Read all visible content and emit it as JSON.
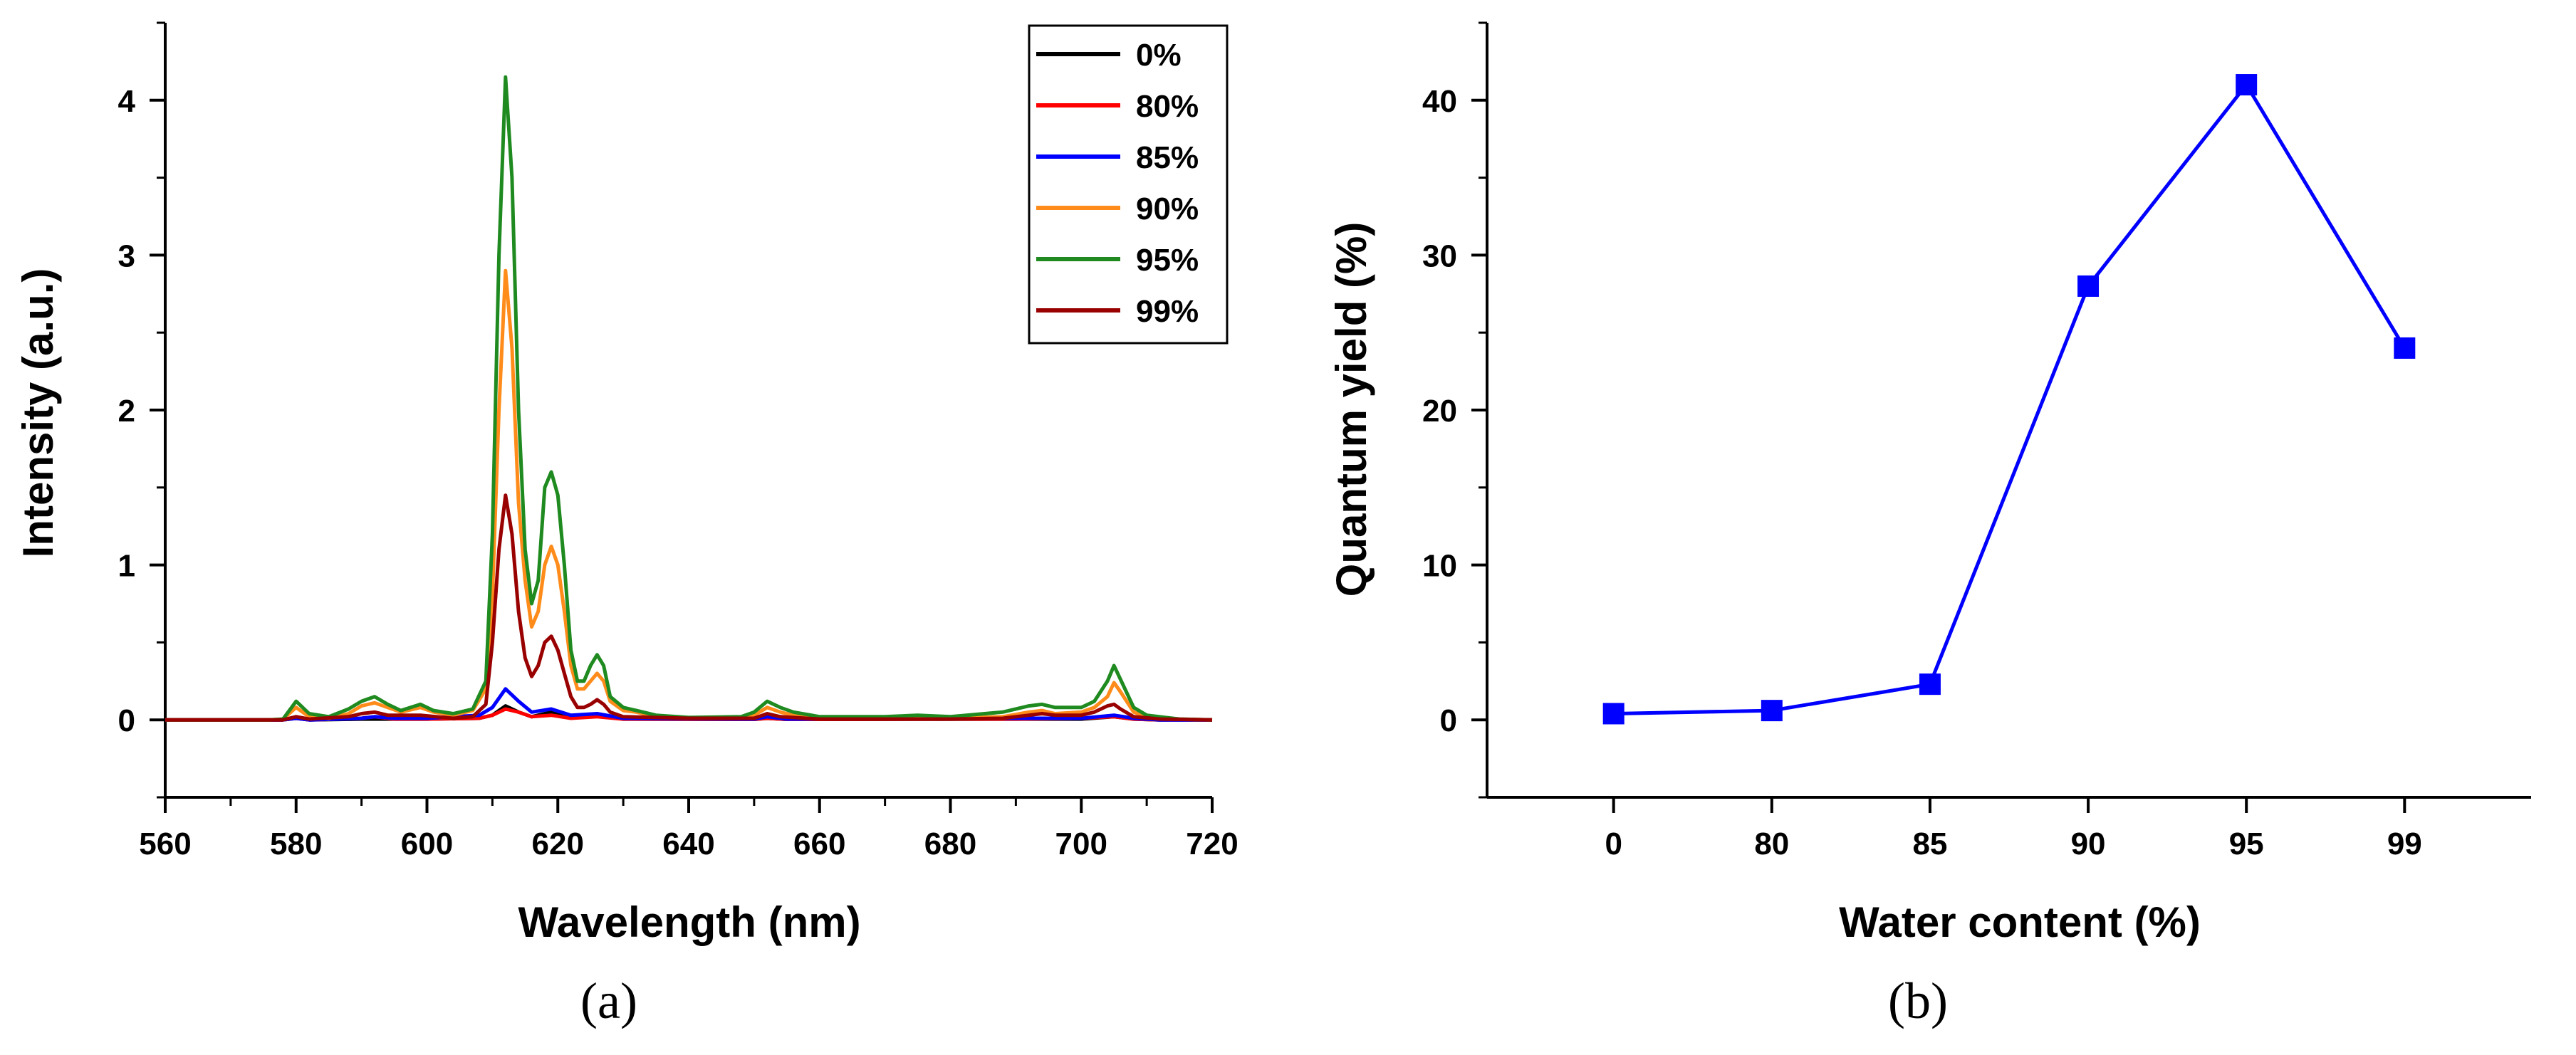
{
  "chart_data": [
    {
      "type": "line",
      "panel_label": "(a)",
      "xlabel": "Wavelength (nm)",
      "ylabel": "Intensity (a.u.)",
      "xlim": [
        560,
        720
      ],
      "ylim": [
        -0.5,
        4.5
      ],
      "xticks": [
        560,
        580,
        600,
        620,
        640,
        660,
        680,
        700,
        720
      ],
      "yticks": [
        0,
        1,
        2,
        3,
        4
      ],
      "legend_position": "top-right",
      "series": [
        {
          "name": "0%",
          "color": "#000000",
          "points": [
            [
              560,
              0
            ],
            [
              578,
              0
            ],
            [
              580,
              0.01
            ],
            [
              582,
              0
            ],
            [
              590,
              0.005
            ],
            [
              600,
              0.005
            ],
            [
              608,
              0.01
            ],
            [
              610,
              0.03
            ],
            [
              612,
              0.09
            ],
            [
              614,
              0.05
            ],
            [
              616,
              0.02
            ],
            [
              619,
              0.05
            ],
            [
              622,
              0.02
            ],
            [
              626,
              0.03
            ],
            [
              630,
              0.005
            ],
            [
              650,
              0.003
            ],
            [
              652,
              0.01
            ],
            [
              655,
              0.003
            ],
            [
              690,
              0.005
            ],
            [
              700,
              0.005
            ],
            [
              705,
              0.02
            ],
            [
              708,
              0.005
            ],
            [
              712,
              0
            ],
            [
              720,
              0
            ]
          ]
        },
        {
          "name": "80%",
          "color": "#ff0000",
          "points": [
            [
              560,
              0
            ],
            [
              578,
              0
            ],
            [
              580,
              0.01
            ],
            [
              582,
              0
            ],
            [
              590,
              0.01
            ],
            [
              592,
              0.02
            ],
            [
              595,
              0.005
            ],
            [
              600,
              0.005
            ],
            [
              608,
              0.01
            ],
            [
              610,
              0.03
            ],
            [
              612,
              0.07
            ],
            [
              614,
              0.05
            ],
            [
              616,
              0.02
            ],
            [
              619,
              0.03
            ],
            [
              622,
              0.01
            ],
            [
              626,
              0.02
            ],
            [
              630,
              0.005
            ],
            [
              650,
              0.003
            ],
            [
              652,
              0.01
            ],
            [
              655,
              0.003
            ],
            [
              690,
              0.005
            ],
            [
              700,
              0.01
            ],
            [
              705,
              0.02
            ],
            [
              708,
              0.005
            ],
            [
              712,
              0
            ],
            [
              720,
              0
            ]
          ]
        },
        {
          "name": "85%",
          "color": "#0000ff",
          "points": [
            [
              560,
              0
            ],
            [
              578,
              0
            ],
            [
              580,
              0.01
            ],
            [
              582,
              0
            ],
            [
              590,
              0.01
            ],
            [
              592,
              0.02
            ],
            [
              595,
              0.01
            ],
            [
              600,
              0.01
            ],
            [
              608,
              0.03
            ],
            [
              610,
              0.08
            ],
            [
              612,
              0.2
            ],
            [
              614,
              0.12
            ],
            [
              616,
              0.05
            ],
            [
              619,
              0.07
            ],
            [
              622,
              0.03
            ],
            [
              626,
              0.04
            ],
            [
              630,
              0.01
            ],
            [
              650,
              0.005
            ],
            [
              652,
              0.02
            ],
            [
              655,
              0.005
            ],
            [
              690,
              0.01
            ],
            [
              700,
              0.01
            ],
            [
              705,
              0.03
            ],
            [
              708,
              0.01
            ],
            [
              712,
              0
            ],
            [
              720,
              0
            ]
          ]
        },
        {
          "name": "90%",
          "color": "#ff8c1a",
          "points": [
            [
              560,
              0
            ],
            [
              576,
              0
            ],
            [
              578,
              0.005
            ],
            [
              580,
              0.08
            ],
            [
              582,
              0.02
            ],
            [
              585,
              0.01
            ],
            [
              588,
              0.04
            ],
            [
              590,
              0.09
            ],
            [
              592,
              0.11
            ],
            [
              594,
              0.08
            ],
            [
              596,
              0.05
            ],
            [
              599,
              0.08
            ],
            [
              601,
              0.05
            ],
            [
              604,
              0.03
            ],
            [
              607,
              0.06
            ],
            [
              609,
              0.2
            ],
            [
              610,
              0.8
            ],
            [
              611,
              2.0
            ],
            [
              612,
              2.9
            ],
            [
              613,
              2.4
            ],
            [
              614,
              1.4
            ],
            [
              615,
              0.9
            ],
            [
              616,
              0.6
            ],
            [
              617,
              0.7
            ],
            [
              618,
              1.0
            ],
            [
              619,
              1.12
            ],
            [
              620,
              1.0
            ],
            [
              621,
              0.7
            ],
            [
              622,
              0.35
            ],
            [
              623,
              0.2
            ],
            [
              624,
              0.2
            ],
            [
              625,
              0.25
            ],
            [
              626,
              0.3
            ],
            [
              627,
              0.25
            ],
            [
              628,
              0.12
            ],
            [
              630,
              0.06
            ],
            [
              632,
              0.05
            ],
            [
              635,
              0.02
            ],
            [
              640,
              0.01
            ],
            [
              648,
              0.01
            ],
            [
              650,
              0.03
            ],
            [
              652,
              0.08
            ],
            [
              654,
              0.05
            ],
            [
              656,
              0.03
            ],
            [
              660,
              0.01
            ],
            [
              670,
              0.01
            ],
            [
              675,
              0.02
            ],
            [
              680,
              0.01
            ],
            [
              688,
              0.02
            ],
            [
              692,
              0.05
            ],
            [
              694,
              0.06
            ],
            [
              696,
              0.04
            ],
            [
              700,
              0.05
            ],
            [
              702,
              0.08
            ],
            [
              704,
              0.15
            ],
            [
              705,
              0.24
            ],
            [
              706,
              0.18
            ],
            [
              708,
              0.05
            ],
            [
              710,
              0.02
            ],
            [
              715,
              0.005
            ],
            [
              720,
              0
            ]
          ]
        },
        {
          "name": "95%",
          "color": "#1f8a1f",
          "points": [
            [
              560,
              0
            ],
            [
              576,
              0
            ],
            [
              578,
              0.005
            ],
            [
              580,
              0.12
            ],
            [
              582,
              0.04
            ],
            [
              585,
              0.02
            ],
            [
              588,
              0.07
            ],
            [
              590,
              0.12
            ],
            [
              592,
              0.15
            ],
            [
              594,
              0.1
            ],
            [
              596,
              0.06
            ],
            [
              599,
              0.1
            ],
            [
              601,
              0.06
            ],
            [
              604,
              0.04
            ],
            [
              607,
              0.07
            ],
            [
              609,
              0.25
            ],
            [
              610,
              1.2
            ],
            [
              611,
              3.0
            ],
            [
              612,
              4.15
            ],
            [
              613,
              3.5
            ],
            [
              614,
              2.0
            ],
            [
              615,
              1.1
            ],
            [
              616,
              0.75
            ],
            [
              617,
              0.9
            ],
            [
              618,
              1.5
            ],
            [
              619,
              1.6
            ],
            [
              620,
              1.45
            ],
            [
              621,
              1.0
            ],
            [
              622,
              0.45
            ],
            [
              623,
              0.25
            ],
            [
              624,
              0.25
            ],
            [
              625,
              0.35
            ],
            [
              626,
              0.42
            ],
            [
              627,
              0.35
            ],
            [
              628,
              0.15
            ],
            [
              630,
              0.08
            ],
            [
              632,
              0.06
            ],
            [
              635,
              0.03
            ],
            [
              640,
              0.015
            ],
            [
              648,
              0.02
            ],
            [
              650,
              0.05
            ],
            [
              652,
              0.12
            ],
            [
              654,
              0.08
            ],
            [
              656,
              0.05
            ],
            [
              660,
              0.02
            ],
            [
              670,
              0.02
            ],
            [
              675,
              0.03
            ],
            [
              680,
              0.02
            ],
            [
              688,
              0.05
            ],
            [
              692,
              0.09
            ],
            [
              694,
              0.1
            ],
            [
              696,
              0.08
            ],
            [
              700,
              0.08
            ],
            [
              702,
              0.12
            ],
            [
              704,
              0.25
            ],
            [
              705,
              0.35
            ],
            [
              706,
              0.26
            ],
            [
              708,
              0.08
            ],
            [
              710,
              0.03
            ],
            [
              715,
              0.005
            ],
            [
              720,
              0
            ]
          ]
        },
        {
          "name": "99%",
          "color": "#990000",
          "points": [
            [
              560,
              0
            ],
            [
              578,
              0
            ],
            [
              580,
              0.02
            ],
            [
              582,
              0.005
            ],
            [
              588,
              0.02
            ],
            [
              590,
              0.04
            ],
            [
              592,
              0.05
            ],
            [
              594,
              0.03
            ],
            [
              599,
              0.03
            ],
            [
              604,
              0.01
            ],
            [
              607,
              0.02
            ],
            [
              609,
              0.1
            ],
            [
              610,
              0.5
            ],
            [
              611,
              1.1
            ],
            [
              612,
              1.45
            ],
            [
              613,
              1.2
            ],
            [
              614,
              0.7
            ],
            [
              615,
              0.4
            ],
            [
              616,
              0.28
            ],
            [
              617,
              0.35
            ],
            [
              618,
              0.5
            ],
            [
              619,
              0.54
            ],
            [
              620,
              0.45
            ],
            [
              621,
              0.3
            ],
            [
              622,
              0.15
            ],
            [
              623,
              0.08
            ],
            [
              624,
              0.08
            ],
            [
              625,
              0.1
            ],
            [
              626,
              0.13
            ],
            [
              627,
              0.1
            ],
            [
              628,
              0.05
            ],
            [
              630,
              0.02
            ],
            [
              640,
              0.01
            ],
            [
              650,
              0.01
            ],
            [
              652,
              0.04
            ],
            [
              654,
              0.02
            ],
            [
              660,
              0.005
            ],
            [
              680,
              0.005
            ],
            [
              688,
              0.01
            ],
            [
              692,
              0.03
            ],
            [
              694,
              0.04
            ],
            [
              696,
              0.03
            ],
            [
              700,
              0.03
            ],
            [
              702,
              0.05
            ],
            [
              704,
              0.09
            ],
            [
              705,
              0.1
            ],
            [
              706,
              0.07
            ],
            [
              708,
              0.02
            ],
            [
              712,
              0.005
            ],
            [
              720,
              0
            ]
          ]
        }
      ]
    },
    {
      "type": "line",
      "panel_label": "(b)",
      "xlabel": "Water content (%)",
      "ylabel": "Quantum yield (%)",
      "categories": [
        "0",
        "80",
        "85",
        "90",
        "95",
        "99"
      ],
      "ylim": [
        -5,
        45
      ],
      "yticks": [
        0,
        10,
        20,
        30,
        40
      ],
      "series": [
        {
          "name": "Quantum yield",
          "color": "#0000ff",
          "marker": "square",
          "values": [
            0.4,
            0.6,
            2.3,
            28,
            41,
            24
          ]
        }
      ]
    }
  ]
}
